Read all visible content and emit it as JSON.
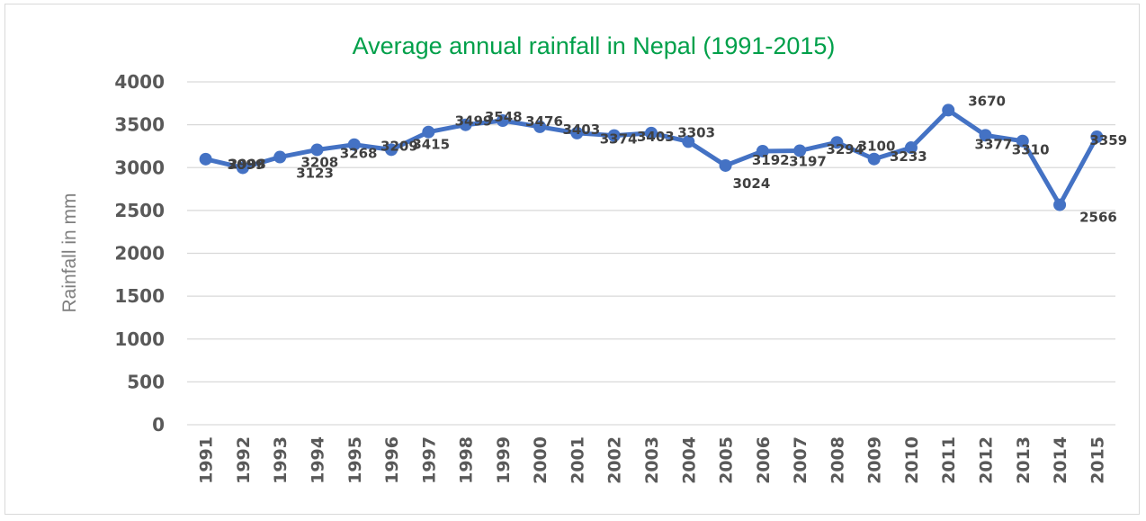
{
  "chart_data": {
    "type": "line",
    "title": "Average annual rainfall in Nepal (1991-2015)",
    "xlabel": "",
    "ylabel": "Rainfall in mm",
    "ylim": [
      0,
      4000
    ],
    "yticks": [
      "0",
      "500",
      "1000",
      "1500",
      "2000",
      "2500",
      "3000",
      "3500",
      "4000"
    ],
    "grid": true,
    "legend": "none",
    "categories": [
      "1991",
      "1992",
      "1993",
      "1994",
      "1995",
      "1996",
      "1997",
      "1998",
      "1999",
      "2000",
      "2001",
      "2002",
      "2003",
      "2004",
      "2005",
      "2006",
      "2007",
      "2008",
      "2009",
      "2010",
      "2011",
      "2012",
      "2013",
      "2014",
      "2015"
    ],
    "series": [
      {
        "color": "#4472c4",
        "values": [
          3099,
          2998,
          3123,
          3208,
          3268,
          3209,
          3415,
          3499,
          3548,
          3476,
          3403,
          3374,
          3403,
          3303,
          3024,
          3192,
          3197,
          3294,
          3100,
          3233,
          3670,
          3377,
          3310,
          2566,
          3359
        ],
        "labels": [
          "3099",
          "2998",
          "3123",
          "3208",
          "3268",
          "3209",
          "3415",
          "3499",
          "3548",
          "3476",
          "3403",
          "3374",
          "3403",
          "3303",
          "3024",
          "3192",
          "3197",
          "3294",
          "3100",
          "3233",
          "3670",
          "3377",
          "3310",
          "2566",
          "3359"
        ]
      }
    ]
  }
}
